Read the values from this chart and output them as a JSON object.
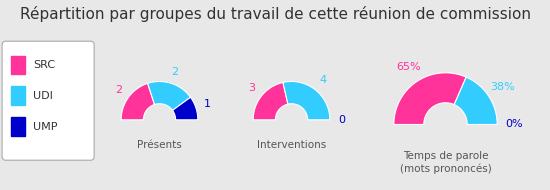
{
  "title": "Répartition par groupes du travail de cette réunion de commission",
  "title_fontsize": 11,
  "background_color": "#e8e8e8",
  "legend_items": [
    "SRC",
    "UDI",
    "UMP"
  ],
  "colors": {
    "SRC": "#ff3399",
    "UDI": "#33ccff",
    "UMP": "#0000cc"
  },
  "charts": [
    {
      "title": "Présents",
      "values": {
        "SRC": 2,
        "UDI": 2,
        "UMP": 1
      },
      "labels": {
        "SRC": "2",
        "UDI": "2",
        "UMP": "1"
      }
    },
    {
      "title": "Interventions",
      "values": {
        "SRC": 3,
        "UDI": 4,
        "UMP": 0
      },
      "labels": {
        "SRC": "3",
        "UDI": "4",
        "UMP": "0"
      }
    },
    {
      "title": "Temps de parole\n(mots prononcés)",
      "values": {
        "SRC": 65,
        "UDI": 38,
        "UMP": 0
      },
      "labels": {
        "SRC": "65%",
        "UDI": "38%",
        "UMP": "0%"
      }
    }
  ]
}
